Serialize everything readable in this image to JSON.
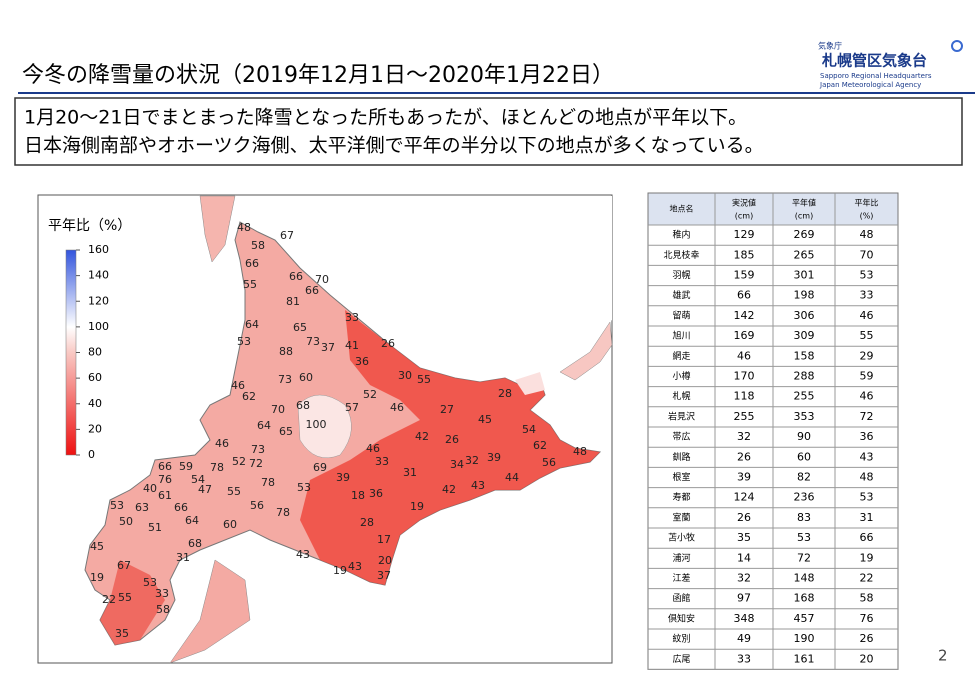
{
  "header": {
    "title": "今冬の降雪量の状況（2019年12月1日～2020年1月22日）",
    "logo": {
      "agency": "気象庁",
      "office": "札幌管区気象台",
      "english1": "Sapporo Regional Headquarters",
      "english2": "Japan Meteorological Agency"
    }
  },
  "summary": [
    "1月20～21日でまとまった降雪となった所もあったが、ほとんどの地点が平年以下。",
    "日本海側南部やオホーツク海側、太平洋側で平年の半分以下の地点が多くなっている。"
  ],
  "map": {
    "legend": {
      "title": "平年比（%）",
      "ticks": [
        160,
        140,
        120,
        100,
        80,
        60,
        40,
        20,
        0
      ]
    },
    "labels": [
      48,
      58,
      67,
      66,
      55,
      66,
      70,
      66,
      81,
      64,
      65,
      33,
      53,
      73,
      37,
      41,
      26,
      88,
      36,
      73,
      60,
      30,
      55,
      46,
      62,
      52,
      28,
      68,
      57,
      46,
      27,
      70,
      64,
      65,
      100,
      45,
      42,
      26,
      46,
      73,
      46,
      54,
      62,
      48,
      52,
      72,
      33,
      34,
      32,
      39,
      56,
      69,
      66,
      59,
      78,
      31,
      44,
      76,
      54,
      78,
      39,
      40,
      47,
      55,
      43,
      42,
      61,
      56,
      53,
      36,
      18,
      53,
      63,
      66,
      78,
      19,
      64,
      50,
      60,
      28,
      51,
      68,
      17,
      43,
      45,
      20,
      67,
      43,
      19,
      37,
      19,
      31,
      53,
      33,
      55,
      22,
      58,
      35
    ]
  },
  "table": {
    "header": [
      {
        "label": "地点名"
      },
      {
        "label": "実況値",
        "unit": "(cm)"
      },
      {
        "label": "平年値",
        "unit": "(cm)"
      },
      {
        "label": "平年比",
        "unit": "(%)"
      }
    ],
    "rows": [
      [
        "稚内",
        129,
        269,
        48
      ],
      [
        "北見枝幸",
        185,
        265,
        70
      ],
      [
        "羽幌",
        159,
        301,
        53
      ],
      [
        "雄武",
        66,
        198,
        33
      ],
      [
        "留萌",
        142,
        306,
        46
      ],
      [
        "旭川",
        169,
        309,
        55
      ],
      [
        "網走",
        46,
        158,
        29
      ],
      [
        "小樽",
        170,
        288,
        59
      ],
      [
        "札幌",
        118,
        255,
        46
      ],
      [
        "岩見沢",
        255,
        353,
        72
      ],
      [
        "帯広",
        32,
        90,
        36
      ],
      [
        "釧路",
        26,
        60,
        43
      ],
      [
        "根室",
        39,
        82,
        48
      ],
      [
        "寿都",
        124,
        236,
        53
      ],
      [
        "室蘭",
        26,
        83,
        31
      ],
      [
        "苫小牧",
        35,
        53,
        66
      ],
      [
        "浦河",
        14,
        72,
        19
      ],
      [
        "江差",
        32,
        148,
        22
      ],
      [
        "函館",
        97,
        168,
        58
      ],
      [
        "倶知安",
        348,
        457,
        76
      ],
      [
        "紋別",
        49,
        190,
        26
      ],
      [
        "広尾",
        33,
        161,
        20
      ]
    ]
  },
  "page_number": 2
}
